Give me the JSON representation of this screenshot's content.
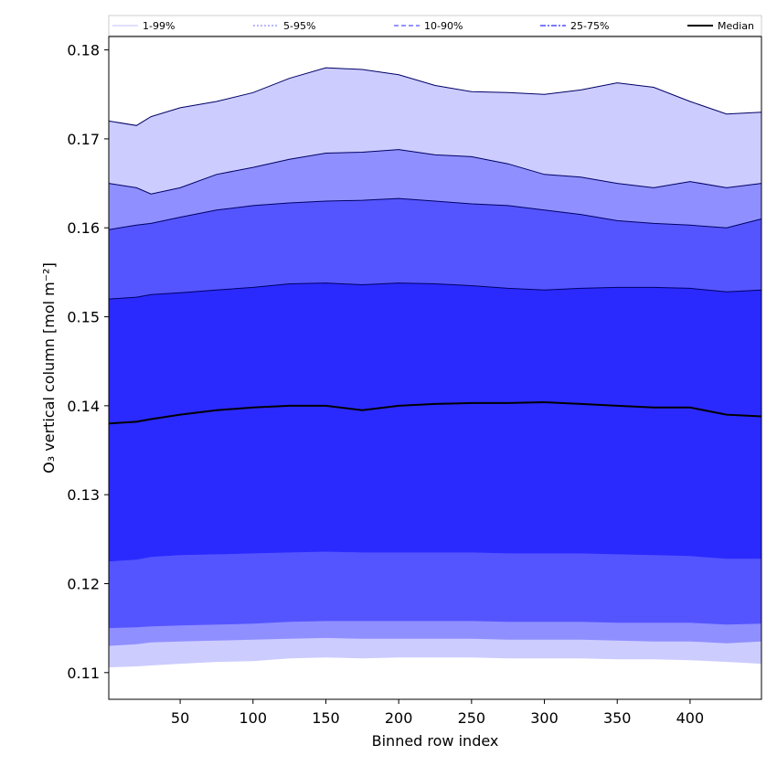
{
  "chart_data": {
    "type": "area",
    "title": "",
    "xlabel": "Binned row index",
    "ylabel": "O₃ vertical column [mol m⁻²]",
    "xlim": [
      1,
      449
    ],
    "ylim": [
      0.107,
      0.1815
    ],
    "xticks": [
      50,
      100,
      150,
      200,
      250,
      300,
      350,
      400
    ],
    "yticks": [
      0.11,
      0.12,
      0.13,
      0.14,
      0.15,
      0.16,
      0.17,
      0.18
    ],
    "ytick_labels": [
      "0.11",
      "0.12",
      "0.13",
      "0.14",
      "0.15",
      "0.16",
      "0.17",
      "0.18"
    ],
    "grid": false,
    "legend_position": "top",
    "x": [
      1,
      20,
      30,
      50,
      75,
      100,
      125,
      150,
      175,
      200,
      225,
      250,
      275,
      300,
      325,
      350,
      375,
      400,
      425,
      449
    ],
    "series": [
      {
        "name": "1-99%",
        "color": "#ccccff",
        "line": "solid-faint",
        "lower": [
          0.1106,
          0.1107,
          0.1108,
          0.111,
          0.1112,
          0.1113,
          0.1116,
          0.1117,
          0.1116,
          0.1117,
          0.1117,
          0.1117,
          0.1116,
          0.1116,
          0.1116,
          0.1115,
          0.1115,
          0.1114,
          0.1112,
          0.111
        ],
        "upper": [
          0.172,
          0.1715,
          0.1725,
          0.1735,
          0.1742,
          0.1752,
          0.1768,
          0.178,
          0.1778,
          0.1772,
          0.176,
          0.1753,
          0.1752,
          0.175,
          0.1755,
          0.1763,
          0.1758,
          0.1742,
          0.1728,
          0.173
        ]
      },
      {
        "name": "5-95%",
        "color": "#8f8fff",
        "line": "dotted",
        "lower": [
          0.113,
          0.1132,
          0.1134,
          0.1135,
          0.1136,
          0.1137,
          0.1138,
          0.1139,
          0.1138,
          0.1138,
          0.1138,
          0.1138,
          0.1137,
          0.1137,
          0.1137,
          0.1136,
          0.1135,
          0.1135,
          0.1133,
          0.1135
        ],
        "upper": [
          0.165,
          0.1645,
          0.1638,
          0.1645,
          0.166,
          0.1668,
          0.1677,
          0.1684,
          0.1685,
          0.1688,
          0.1682,
          0.168,
          0.1672,
          0.166,
          0.1657,
          0.165,
          0.1645,
          0.1652,
          0.1645,
          0.165
        ]
      },
      {
        "name": "10-90%",
        "color": "#5555ff",
        "line": "dashed",
        "lower": [
          0.115,
          0.1151,
          0.1152,
          0.1153,
          0.1154,
          0.1155,
          0.1157,
          0.1158,
          0.1158,
          0.1158,
          0.1158,
          0.1158,
          0.1157,
          0.1157,
          0.1157,
          0.1156,
          0.1156,
          0.1156,
          0.1154,
          0.1155
        ],
        "upper": [
          0.1598,
          0.1603,
          0.1605,
          0.1612,
          0.162,
          0.1625,
          0.1628,
          0.163,
          0.1631,
          0.1633,
          0.163,
          0.1627,
          0.1625,
          0.162,
          0.1615,
          0.1608,
          0.1605,
          0.1603,
          0.16,
          0.161
        ]
      },
      {
        "name": "25-75%",
        "color": "#2a2aff",
        "line": "dash-dot",
        "lower": [
          0.1225,
          0.1227,
          0.123,
          0.1232,
          0.1233,
          0.1234,
          0.1235,
          0.1236,
          0.1235,
          0.1235,
          0.1235,
          0.1235,
          0.1234,
          0.1234,
          0.1234,
          0.1233,
          0.1232,
          0.1231,
          0.1228,
          0.1228
        ],
        "upper": [
          0.152,
          0.1522,
          0.1525,
          0.1527,
          0.153,
          0.1533,
          0.1537,
          0.1538,
          0.1536,
          0.1538,
          0.1537,
          0.1535,
          0.1532,
          0.153,
          0.1532,
          0.1533,
          0.1533,
          0.1532,
          0.1528,
          0.153
        ]
      },
      {
        "name": "Median",
        "color": "#000000",
        "line": "solid",
        "values": [
          0.138,
          0.1382,
          0.1385,
          0.139,
          0.1395,
          0.1398,
          0.14,
          0.14,
          0.1395,
          0.14,
          0.1402,
          0.1403,
          0.1403,
          0.1404,
          0.1402,
          0.14,
          0.1398,
          0.1398,
          0.139,
          0.1388
        ]
      }
    ]
  }
}
